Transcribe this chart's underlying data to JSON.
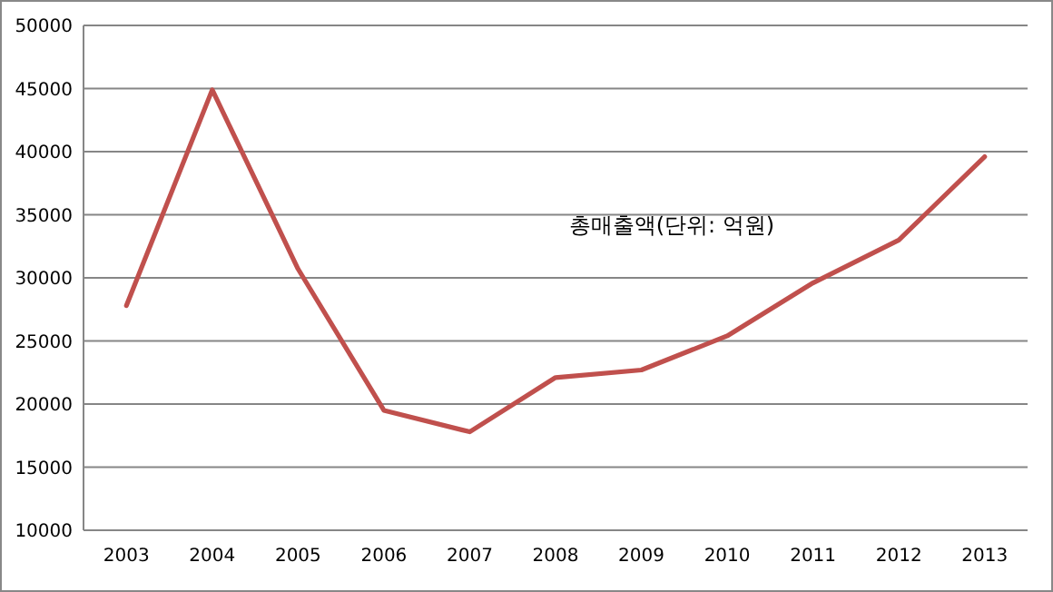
{
  "chart_data": {
    "type": "line",
    "title": "총매출액(단위: 억원)",
    "categories": [
      "2003",
      "2004",
      "2005",
      "2006",
      "2007",
      "2008",
      "2009",
      "2010",
      "2011",
      "2012",
      "2013"
    ],
    "series": [
      {
        "color": "#c0504d",
        "values": [
          27800,
          44900,
          30700,
          19500,
          17800,
          22100,
          22700,
          25400,
          29600,
          33000,
          39600
        ]
      }
    ],
    "ylim": [
      10000,
      50000
    ],
    "yticks": [
      10000,
      15000,
      20000,
      25000,
      30000,
      35000,
      40000,
      45000,
      50000
    ],
    "grid": "y",
    "marker": "none",
    "line_style": "solid"
  }
}
